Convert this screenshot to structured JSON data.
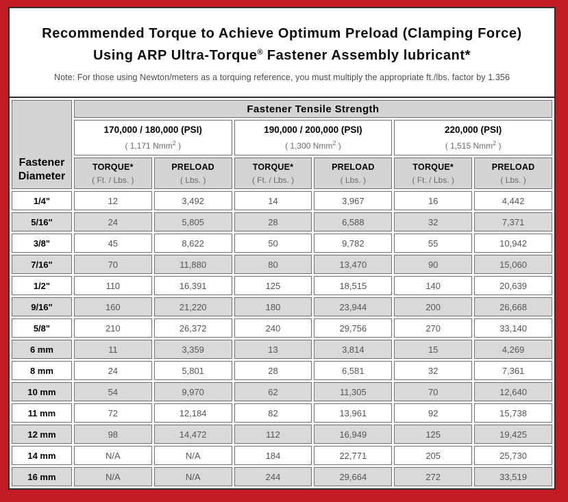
{
  "colors": {
    "frame_red": "#c11b24",
    "header_gray": "#d4d4d4",
    "row_stripe_gray": "#d9d9d9",
    "cell_border_gray": "#6f6f6f",
    "value_text_gray": "#555555"
  },
  "title": {
    "line1": "Recommended Torque to Achieve Optimum Preload (Clamping Force)",
    "line2_pre": "Using ARP Ultra-Torque",
    "line2_reg": "®",
    "line2_post": " Fastener Assembly lubricant*",
    "note": "Note: For those using Newton/meters as a torquing reference, you must multiply the appropriate ft./lbs. factor by 1.356"
  },
  "table": {
    "corner_line1": "Fastener",
    "corner_line2": "Diameter",
    "tensile_header": "Fastener Tensile Strength",
    "strength_groups": [
      {
        "psi": "170,000 / 180,000 (PSI)",
        "nmm_prefix": "( 1,171 Nmm",
        "sup": "2",
        "nmm_suffix": " )"
      },
      {
        "psi": "190,000 / 200,000 (PSI)",
        "nmm_prefix": "( 1,300 Nmm",
        "sup": "2",
        "nmm_suffix": " )"
      },
      {
        "psi": "220,000 (PSI)",
        "nmm_prefix": "( 1,515 Nmm",
        "sup": "2",
        "nmm_suffix": " )"
      }
    ],
    "col_headers": {
      "torque_label": "TORQUE*",
      "torque_sub": "( Ft. / Lbs. )",
      "preload_label": "PRELOAD",
      "preload_sub": "( Lbs. )"
    },
    "rows": [
      {
        "dia": "1/4\"",
        "values": [
          "12",
          "3,492",
          "14",
          "3,967",
          "16",
          "4,442"
        ]
      },
      {
        "dia": "5/16\"",
        "values": [
          "24",
          "5,805",
          "28",
          "6,588",
          "32",
          "7,371"
        ]
      },
      {
        "dia": "3/8\"",
        "values": [
          "45",
          "8,622",
          "50",
          "9,782",
          "55",
          "10,942"
        ]
      },
      {
        "dia": "7/16\"",
        "values": [
          "70",
          "11,880",
          "80",
          "13,470",
          "90",
          "15,060"
        ]
      },
      {
        "dia": "1/2\"",
        "values": [
          "110",
          "16,391",
          "125",
          "18,515",
          "140",
          "20,639"
        ]
      },
      {
        "dia": "9/16\"",
        "values": [
          "160",
          "21,220",
          "180",
          "23,944",
          "200",
          "26,668"
        ]
      },
      {
        "dia": "5/8\"",
        "values": [
          "210",
          "26,372",
          "240",
          "29,756",
          "270",
          "33,140"
        ]
      },
      {
        "dia": "6 mm",
        "values": [
          "11",
          "3,359",
          "13",
          "3,814",
          "15",
          "4,269"
        ]
      },
      {
        "dia": "8 mm",
        "values": [
          "24",
          "5,801",
          "28",
          "6,581",
          "32",
          "7,361"
        ]
      },
      {
        "dia": "10 mm",
        "values": [
          "54",
          "9,970",
          "62",
          "11,305",
          "70",
          "12,640"
        ]
      },
      {
        "dia": "11 mm",
        "values": [
          "72",
          "12,184",
          "82",
          "13,961",
          "92",
          "15,738"
        ]
      },
      {
        "dia": "12 mm",
        "values": [
          "98",
          "14,472",
          "112",
          "16,949",
          "125",
          "19,425"
        ]
      },
      {
        "dia": "14 mm",
        "values": [
          "N/A",
          "N/A",
          "184",
          "22,771",
          "205",
          "25,730"
        ]
      },
      {
        "dia": "16 mm",
        "values": [
          "N/A",
          "N/A",
          "244",
          "29,664",
          "272",
          "33,519"
        ]
      }
    ]
  }
}
